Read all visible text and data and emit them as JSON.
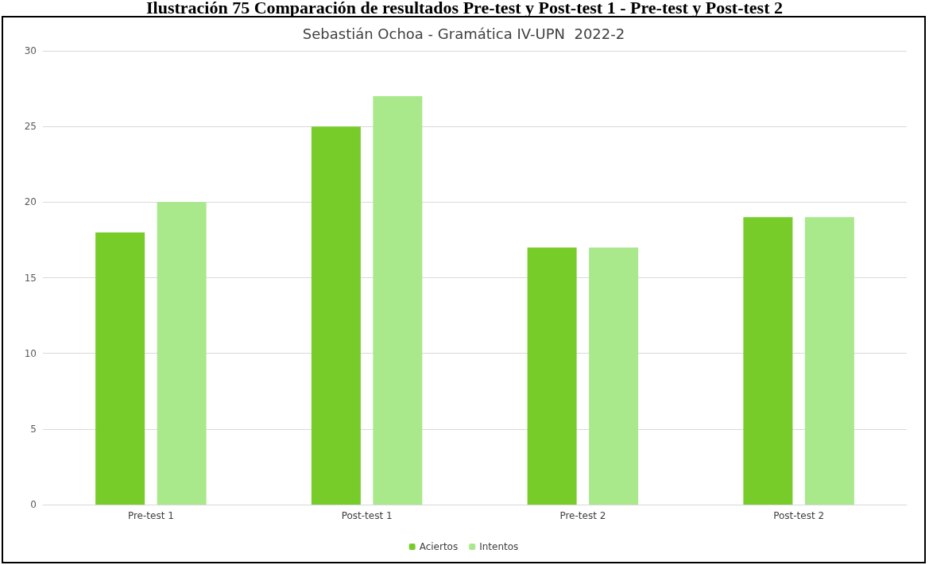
{
  "chart_data": {
    "type": "bar",
    "title": "Ilustración 75 Comparación de resultados Pre-test y Post-test 1 - Pre-test y Post-test 2",
    "subtitle": "Sebastián Ochoa - Gramática IV-UPN  2022-2",
    "categories": [
      "Pre-test 1",
      "Post-test 1",
      "Pre-test 2",
      "Post-test 2"
    ],
    "series": [
      {
        "name": "Aciertos",
        "color": "#77cc2a",
        "values": [
          18,
          25,
          17,
          19
        ]
      },
      {
        "name": "Intentos",
        "color": "#a9e98b",
        "values": [
          20,
          27,
          17,
          19
        ]
      }
    ],
    "ylim": [
      0,
      30
    ],
    "yticks": [
      0,
      5,
      10,
      15,
      20,
      25,
      30
    ],
    "grid": "y",
    "legend": "bottom"
  }
}
